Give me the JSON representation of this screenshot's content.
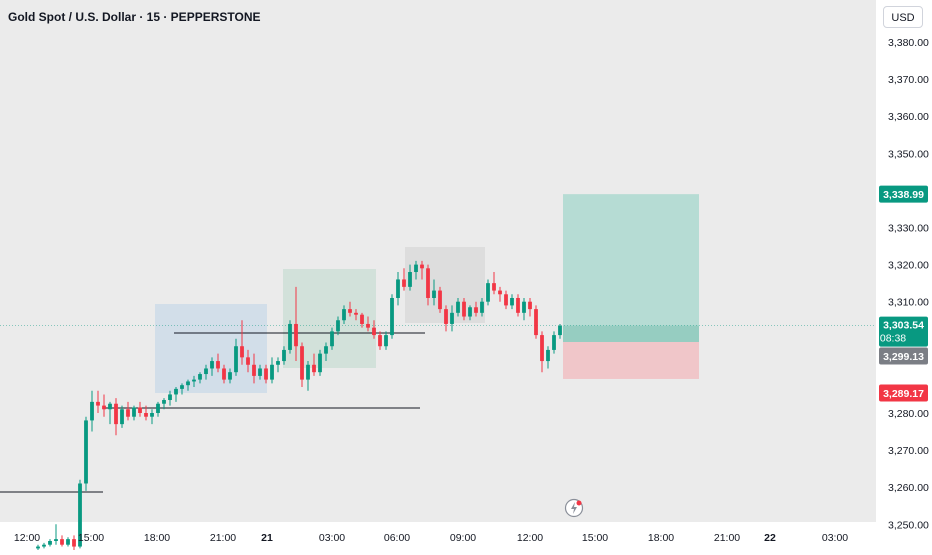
{
  "header": {
    "title": "Gold Spot / U.S. Dollar · 15 · PEPPERSTONE",
    "currency": "USD"
  },
  "colors": {
    "background": "#ebebeb",
    "up": "#089981",
    "down": "#f23645",
    "text": "#131722",
    "target_zone": "#b6dcd4",
    "stop_zone": "#f0c6c9",
    "blue_zone": "#cfdde9",
    "green_zone": "#cfe0d8",
    "gray_zone": "#dcdcdc"
  },
  "price_labels": {
    "target": "3,338.99",
    "last": "3,303.54",
    "countdown": "08:38",
    "entry": "3,299.13",
    "stop": "3,289.17"
  },
  "chart_data": {
    "type": "candlestick",
    "symbol": "XAUUSD",
    "interval": "15",
    "y_axis": {
      "ticks": [
        "3,380.00",
        "3,370.00",
        "3,360.00",
        "3,350.00",
        "3,330.00",
        "3,320.00",
        "3,310.00",
        "3,280.00",
        "3,270.00",
        "3,260.00",
        "3,250.00"
      ],
      "ylim": [
        3242,
        3388
      ]
    },
    "x_axis": {
      "ticks": [
        "12:00",
        "15:00",
        "18:00",
        "21:00",
        "21",
        "03:00",
        "06:00",
        "09:00",
        "12:00",
        "15:00",
        "18:00",
        "21:00",
        "22",
        "03:00"
      ]
    },
    "candles": [
      [
        3243.5,
        3244.5,
        3243.0,
        3244.0
      ],
      [
        3244.0,
        3245.0,
        3243.5,
        3244.5
      ],
      [
        3244.5,
        3246.0,
        3244.0,
        3245.5
      ],
      [
        3245.5,
        3250.0,
        3244.5,
        3246.0
      ],
      [
        3246.0,
        3247.0,
        3244.0,
        3244.5
      ],
      [
        3244.5,
        3246.5,
        3244.0,
        3246.0
      ],
      [
        3246.0,
        3247.0,
        3243.0,
        3244.0
      ],
      [
        3244.0,
        3262.0,
        3243.5,
        3261.0
      ],
      [
        3261.0,
        3279.0,
        3259.0,
        3278.0
      ],
      [
        3278.0,
        3286.0,
        3275.0,
        3283.0
      ],
      [
        3283.0,
        3286.0,
        3280.0,
        3282.0
      ],
      [
        3282.0,
        3285.0,
        3279.0,
        3281.0
      ],
      [
        3281.0,
        3283.0,
        3277.0,
        3282.5
      ],
      [
        3282.5,
        3284.0,
        3274.0,
        3277.0
      ],
      [
        3277.0,
        3282.0,
        3276.0,
        3281.0
      ],
      [
        3281.0,
        3283.0,
        3278.0,
        3279.0
      ],
      [
        3279.0,
        3282.0,
        3278.0,
        3281.5
      ],
      [
        3281.5,
        3283.0,
        3279.0,
        3280.0
      ],
      [
        3280.0,
        3282.0,
        3278.0,
        3279.0
      ],
      [
        3279.0,
        3281.0,
        3277.0,
        3280.0
      ],
      [
        3280.0,
        3283.0,
        3279.0,
        3282.5
      ],
      [
        3282.5,
        3284.0,
        3281.0,
        3283.5
      ],
      [
        3283.5,
        3286.0,
        3282.0,
        3285.0
      ],
      [
        3285.0,
        3287.0,
        3283.0,
        3286.5
      ],
      [
        3286.5,
        3288.0,
        3285.0,
        3287.5
      ],
      [
        3287.5,
        3289.0,
        3286.0,
        3288.5
      ],
      [
        3288.5,
        3290.0,
        3287.0,
        3289.0
      ],
      [
        3289.0,
        3291.0,
        3288.0,
        3290.5
      ],
      [
        3290.5,
        3293.0,
        3289.0,
        3292.0
      ],
      [
        3292.0,
        3295.0,
        3290.0,
        3294.0
      ],
      [
        3294.0,
        3296.0,
        3291.0,
        3292.0
      ],
      [
        3292.0,
        3293.0,
        3288.0,
        3289.0
      ],
      [
        3289.0,
        3292.0,
        3288.0,
        3291.0
      ],
      [
        3291.0,
        3300.0,
        3290.0,
        3298.0
      ],
      [
        3298.0,
        3305.0,
        3293.0,
        3295.0
      ],
      [
        3295.0,
        3297.0,
        3291.0,
        3293.0
      ],
      [
        3293.0,
        3296.0,
        3288.0,
        3290.0
      ],
      [
        3290.0,
        3293.0,
        3289.0,
        3292.0
      ],
      [
        3292.0,
        3293.0,
        3288.0,
        3289.0
      ],
      [
        3289.0,
        3295.0,
        3288.0,
        3293.0
      ],
      [
        3293.0,
        3295.0,
        3291.0,
        3294.0
      ],
      [
        3294.0,
        3298.0,
        3293.0,
        3297.0
      ],
      [
        3297.0,
        3305.0,
        3296.0,
        3304.0
      ],
      [
        3304.0,
        3314.0,
        3294.0,
        3298.0
      ],
      [
        3298.0,
        3299.0,
        3287.0,
        3289.0
      ],
      [
        3289.0,
        3294.0,
        3286.0,
        3293.0
      ],
      [
        3293.0,
        3296.0,
        3290.0,
        3291.0
      ],
      [
        3291.0,
        3297.0,
        3290.0,
        3296.0
      ],
      [
        3296.0,
        3299.0,
        3294.0,
        3298.0
      ],
      [
        3298.0,
        3303.0,
        3297.0,
        3302.0
      ],
      [
        3302.0,
        3306.0,
        3301.0,
        3305.0
      ],
      [
        3305.0,
        3309.0,
        3304.0,
        3308.0
      ],
      [
        3308.0,
        3310.0,
        3306.0,
        3307.0
      ],
      [
        3307.0,
        3308.0,
        3305.0,
        3306.5
      ],
      [
        3306.5,
        3307.0,
        3303.0,
        3304.0
      ],
      [
        3304.0,
        3306.0,
        3302.0,
        3303.0
      ],
      [
        3303.0,
        3305.0,
        3300.0,
        3301.0
      ],
      [
        3301.0,
        3302.0,
        3297.0,
        3298.0
      ],
      [
        3298.0,
        3302.0,
        3297.0,
        3301.0
      ],
      [
        3301.0,
        3312.0,
        3300.0,
        3311.0
      ],
      [
        3311.0,
        3318.0,
        3309.0,
        3316.0
      ],
      [
        3316.0,
        3319.0,
        3313.0,
        3314.0
      ],
      [
        3314.0,
        3320.0,
        3313.0,
        3318.0
      ],
      [
        3318.0,
        3321.0,
        3316.0,
        3320.0
      ],
      [
        3320.0,
        3321.0,
        3316.0,
        3319.0
      ],
      [
        3319.0,
        3320.0,
        3309.0,
        3311.0
      ],
      [
        3311.0,
        3316.0,
        3309.0,
        3313.0
      ],
      [
        3313.0,
        3314.0,
        3307.0,
        3308.0
      ],
      [
        3308.0,
        3309.0,
        3302.0,
        3304.0
      ],
      [
        3304.0,
        3309.0,
        3302.0,
        3307.0
      ],
      [
        3307.0,
        3311.0,
        3306.0,
        3310.0
      ],
      [
        3310.0,
        3311.0,
        3305.0,
        3306.0
      ],
      [
        3306.0,
        3309.0,
        3305.0,
        3308.5
      ],
      [
        3308.5,
        3310.0,
        3306.0,
        3307.0
      ],
      [
        3307.0,
        3311.0,
        3306.0,
        3310.0
      ],
      [
        3310.0,
        3316.0,
        3309.0,
        3315.0
      ],
      [
        3315.0,
        3318.0,
        3312.0,
        3313.0
      ],
      [
        3313.0,
        3314.0,
        3310.0,
        3312.0
      ],
      [
        3312.0,
        3313.0,
        3308.0,
        3309.0
      ],
      [
        3309.0,
        3312.0,
        3308.0,
        3311.0
      ],
      [
        3311.0,
        3312.0,
        3306.0,
        3307.0
      ],
      [
        3307.0,
        3311.0,
        3305.0,
        3310.0
      ],
      [
        3310.0,
        3311.0,
        3306.0,
        3308.0
      ],
      [
        3308.0,
        3309.0,
        3300.0,
        3301.0
      ],
      [
        3301.0,
        3302.0,
        3291.0,
        3294.0
      ],
      [
        3294.0,
        3298.0,
        3292.0,
        3297.0
      ],
      [
        3297.0,
        3302.0,
        3296.0,
        3301.0
      ],
      [
        3301.0,
        3304.0,
        3300.0,
        3303.54
      ]
    ]
  }
}
